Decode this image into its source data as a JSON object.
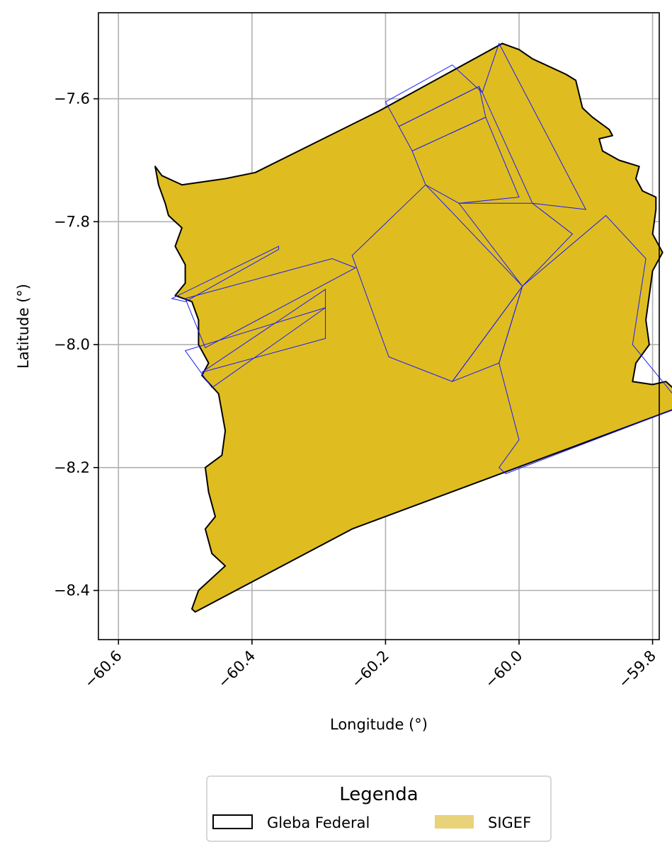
{
  "chart_data": {
    "type": "map",
    "xlabel": "Longitude (°)",
    "ylabel": "Latitude (°)",
    "xlim": [
      -60.63,
      -59.79
    ],
    "ylim": [
      -8.48,
      -7.46
    ],
    "xticks": [
      -60.6,
      -60.4,
      -60.2,
      -60.0,
      -59.8
    ],
    "xtick_labels": [
      "−60.6",
      "−60.4",
      "−60.2",
      "−60.0",
      "−59.8"
    ],
    "yticks": [
      -7.6,
      -7.8,
      -8.0,
      -8.2,
      -8.4
    ],
    "ytick_labels": [
      "−7.6",
      "−7.8",
      "−8.0",
      "−8.2",
      "−8.4"
    ],
    "grid": true,
    "legend": {
      "title": "Legenda",
      "placement": "bottom-center",
      "entries": [
        {
          "label": "Gleba Federal",
          "style": "outline",
          "color": "#000000"
        },
        {
          "label": "SIGEF",
          "style": "fill",
          "color": "#e8d27a"
        }
      ]
    },
    "layers": {
      "gleba_federal": {
        "name": "Gleba Federal",
        "fill": "#dfbd20",
        "stroke": "#000000",
        "outline": [
          [
            -60.485,
            -8.435
          ],
          [
            -60.25,
            -8.3
          ],
          [
            -59.755,
            -8.1
          ],
          [
            -59.77,
            -8.07
          ],
          [
            -59.78,
            -8.06
          ],
          [
            -59.8,
            -8.065
          ],
          [
            -59.83,
            -8.06
          ],
          [
            -59.825,
            -8.03
          ],
          [
            -59.805,
            -8.0
          ],
          [
            -59.81,
            -7.96
          ],
          [
            -59.805,
            -7.92
          ],
          [
            -59.8,
            -7.88
          ],
          [
            -59.785,
            -7.85
          ],
          [
            -59.8,
            -7.82
          ],
          [
            -59.795,
            -7.78
          ],
          [
            -59.795,
            -7.76
          ],
          [
            -59.815,
            -7.75
          ],
          [
            -59.825,
            -7.73
          ],
          [
            -59.82,
            -7.71
          ],
          [
            -59.85,
            -7.7
          ],
          [
            -59.875,
            -7.685
          ],
          [
            -59.88,
            -7.665
          ],
          [
            -59.86,
            -7.66
          ],
          [
            -59.865,
            -7.65
          ],
          [
            -59.89,
            -7.63
          ],
          [
            -59.905,
            -7.615
          ],
          [
            -59.915,
            -7.57
          ],
          [
            -59.93,
            -7.56
          ],
          [
            -59.98,
            -7.535
          ],
          [
            -60.0,
            -7.52
          ],
          [
            -60.025,
            -7.51
          ],
          [
            -60.21,
            -7.62
          ],
          [
            -60.395,
            -7.72
          ],
          [
            -60.44,
            -7.73
          ],
          [
            -60.505,
            -7.74
          ],
          [
            -60.535,
            -7.725
          ],
          [
            -60.545,
            -7.71
          ],
          [
            -60.54,
            -7.74
          ],
          [
            -60.53,
            -7.77
          ],
          [
            -60.525,
            -7.79
          ],
          [
            -60.505,
            -7.81
          ],
          [
            -60.515,
            -7.84
          ],
          [
            -60.5,
            -7.87
          ],
          [
            -60.5,
            -7.9
          ],
          [
            -60.515,
            -7.92
          ],
          [
            -60.49,
            -7.93
          ],
          [
            -60.48,
            -7.96
          ],
          [
            -60.48,
            -8.0
          ],
          [
            -60.465,
            -8.03
          ],
          [
            -60.475,
            -8.05
          ],
          [
            -60.45,
            -8.08
          ],
          [
            -60.445,
            -8.11
          ],
          [
            -60.44,
            -8.14
          ],
          [
            -60.445,
            -8.18
          ],
          [
            -60.47,
            -8.2
          ],
          [
            -60.465,
            -8.24
          ],
          [
            -60.455,
            -8.28
          ],
          [
            -60.47,
            -8.3
          ],
          [
            -60.46,
            -8.34
          ],
          [
            -60.44,
            -8.36
          ],
          [
            -60.48,
            -8.4
          ],
          [
            -60.49,
            -8.43
          ]
        ]
      },
      "sigef": {
        "name": "SIGEF",
        "stroke": "#1a1aff",
        "parcels": [
          [
            [
              -60.03,
              -7.51
            ],
            [
              -59.9,
              -7.78
            ],
            [
              -59.98,
              -7.77
            ],
            [
              -60.055,
              -7.59
            ]
          ],
          [
            [
              -60.1,
              -7.545
            ],
            [
              -60.2,
              -7.605
            ],
            [
              -60.18,
              -7.645
            ],
            [
              -60.06,
              -7.58
            ],
            [
              -60.055,
              -7.59
            ]
          ],
          [
            [
              -60.18,
              -7.645
            ],
            [
              -60.16,
              -7.685
            ],
            [
              -60.05,
              -7.63
            ],
            [
              -60.06,
              -7.58
            ]
          ],
          [
            [
              -60.16,
              -7.685
            ],
            [
              -60.14,
              -7.74
            ],
            [
              -60.09,
              -7.77
            ],
            [
              -60.0,
              -7.76
            ],
            [
              -60.05,
              -7.63
            ]
          ],
          [
            [
              -60.14,
              -7.74
            ],
            [
              -60.25,
              -7.855
            ],
            [
              -60.195,
              -8.02
            ],
            [
              -60.1,
              -8.06
            ],
            [
              -59.995,
              -7.905
            ],
            [
              -60.1,
              -7.785
            ]
          ],
          [
            [
              -59.995,
              -7.905
            ],
            [
              -59.92,
              -7.82
            ],
            [
              -59.98,
              -7.77
            ],
            [
              -60.09,
              -7.77
            ]
          ],
          [
            [
              -59.995,
              -7.905
            ],
            [
              -60.1,
              -8.06
            ],
            [
              -60.03,
              -8.03
            ]
          ],
          [
            [
              -59.87,
              -7.79
            ],
            [
              -59.81,
              -7.86
            ],
            [
              -59.83,
              -8.0
            ],
            [
              -59.755,
              -8.1
            ],
            [
              -60.02,
              -8.21
            ],
            [
              -60.03,
              -8.2
            ],
            [
              -60.0,
              -8.155
            ],
            [
              -60.03,
              -8.03
            ],
            [
              -59.995,
              -7.905
            ]
          ],
          [
            [
              -60.36,
              -7.84
            ],
            [
              -60.52,
              -7.925
            ],
            [
              -60.5,
              -7.93
            ],
            [
              -60.36,
              -7.845
            ]
          ],
          [
            [
              -60.5,
              -7.925
            ],
            [
              -60.28,
              -7.86
            ],
            [
              -60.245,
              -7.875
            ],
            [
              -60.47,
              -8.005
            ]
          ],
          [
            [
              -60.29,
              -7.91
            ],
            [
              -60.475,
              -8.045
            ],
            [
              -60.29,
              -7.99
            ]
          ],
          [
            [
              -60.29,
              -7.94
            ],
            [
              -60.46,
              -8.07
            ],
            [
              -60.5,
              -8.01
            ]
          ]
        ]
      }
    }
  }
}
